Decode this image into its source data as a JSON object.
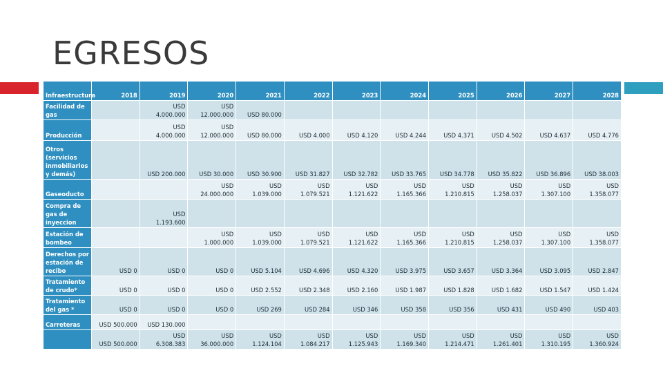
{
  "title": "EGRESOS",
  "colors": {
    "header": "#2f8fc0",
    "row_a": "#cfe2ea",
    "row_b": "#e7f0f4",
    "accent_red": "#d8252b",
    "accent_blue": "#2f9fbf"
  },
  "table": {
    "columns": [
      "Infraestructura",
      "2018",
      "2019",
      "2020",
      "2021",
      "2022",
      "2023",
      "2024",
      "2025",
      "2026",
      "2027",
      "2028"
    ],
    "rows": [
      {
        "label": "Facilidad de gas",
        "cells": [
          "",
          "USD 4.000.000",
          "USD 12.000.000",
          "USD 80.000",
          "",
          "",
          "",
          "",
          "",
          "",
          ""
        ]
      },
      {
        "label": "Producción",
        "cells": [
          "",
          "USD 4.000.000",
          "USD 12.000.000",
          "USD 80.000",
          "USD 4.000",
          "USD 4.120",
          "USD 4.244",
          "USD 4.371",
          "USD 4.502",
          "USD 4.637",
          "USD 4.776"
        ]
      },
      {
        "label": "Otros (servicios inmobiliarios y demás)",
        "cells": [
          "",
          "USD 200.000",
          "USD 30.000",
          "USD 30.900",
          "USD 31.827",
          "USD 32.782",
          "USD 33.765",
          "USD 34.778",
          "USD 35.822",
          "USD 36.896",
          "USD 38.003"
        ]
      },
      {
        "label": "Gaseoducto",
        "cells": [
          "",
          "",
          "USD 24.000.000",
          "USD 1.039.000",
          "USD 1.079.521",
          "USD 1.121.622",
          "USD 1.165.366",
          "USD 1.210.815",
          "USD 1.258.037",
          "USD 1.307.100",
          "USD 1.358.077"
        ]
      },
      {
        "label": "Compra de gas de inyeccion",
        "cells": [
          "",
          "USD 1.193.600",
          "",
          "",
          "",
          "",
          "",
          "",
          "",
          "",
          ""
        ]
      },
      {
        "label": "Estación de bombeo",
        "cells": [
          "",
          "",
          "USD 1.000.000",
          "USD 1.039.000",
          "USD 1.079.521",
          "USD 1.121.622",
          "USD 1.165.366",
          "USD 1.210.815",
          "USD 1.258.037",
          "USD 1.307.100",
          "USD 1.358.077"
        ]
      },
      {
        "label": "Derechos por estación de recibo",
        "cells": [
          "USD 0",
          "USD 0",
          "USD 0",
          "USD 5.104",
          "USD 4.696",
          "USD 4.320",
          "USD 3.975",
          "USD 3.657",
          "USD 3.364",
          "USD 3.095",
          "USD 2.847"
        ]
      },
      {
        "label": "Tratamiento de crudo*",
        "cells": [
          "USD 0",
          "USD 0",
          "USD 0",
          "USD 2.552",
          "USD 2.348",
          "USD 2.160",
          "USD 1.987",
          "USD 1.828",
          "USD 1.682",
          "USD 1.547",
          "USD 1.424"
        ]
      },
      {
        "label": "Tratamiento del gas *",
        "cells": [
          "USD 0",
          "USD 0",
          "USD 0",
          "USD 269",
          "USD 284",
          "USD 346",
          "USD 358",
          "USD 356",
          "USD 431",
          "USD 490",
          "USD 403"
        ]
      },
      {
        "label": "Carreteras",
        "cells": [
          "USD 500.000",
          "USD 130.000",
          "",
          "",
          "",
          "",
          "",
          "",
          "",
          "",
          ""
        ]
      },
      {
        "label": "",
        "cells": [
          "USD 500.000",
          "USD 6.308.383",
          "USD 36.000.000",
          "USD 1.124.104",
          "USD 1.084.217",
          "USD 1.125.943",
          "USD 1.169.340",
          "USD 1.214.471",
          "USD 1.261.401",
          "USD 1.310.195",
          "USD 1.360.924"
        ]
      }
    ]
  }
}
